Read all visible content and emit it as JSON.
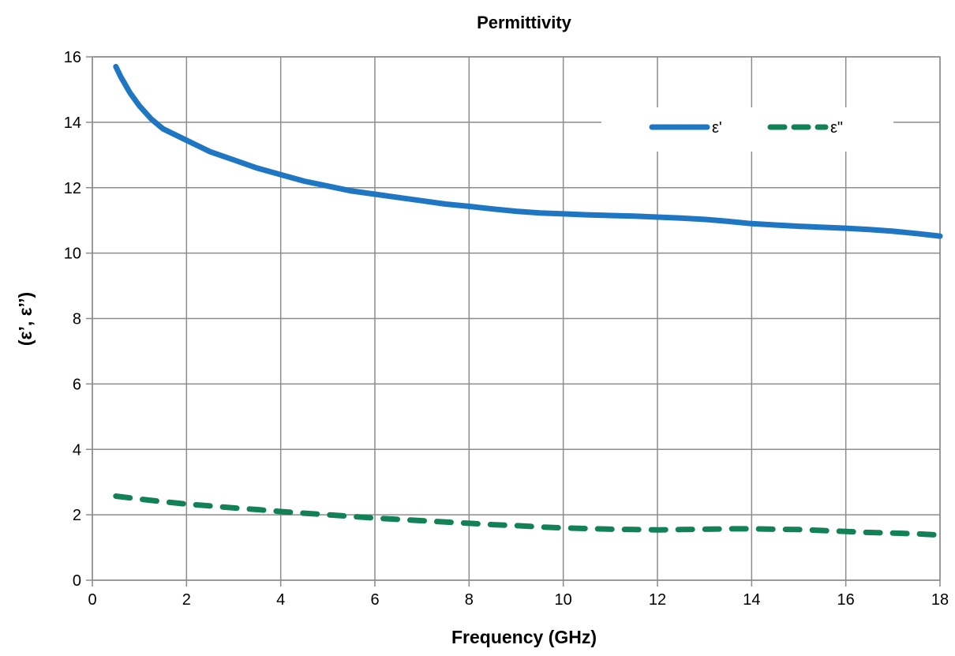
{
  "chart_data": {
    "type": "line",
    "title": "Permittivity",
    "xlabel": "Frequency (GHz)",
    "ylabel": "(ε’, ε’’)",
    "xlim": [
      0,
      18
    ],
    "ylim": [
      0,
      16
    ],
    "x_ticks": [
      "0",
      "2",
      "4",
      "6",
      "8",
      "10",
      "12",
      "14",
      "16",
      "18"
    ],
    "y_ticks": [
      "0",
      "2",
      "4",
      "6",
      "8",
      "10",
      "12",
      "14",
      "16"
    ],
    "grid": true,
    "legend_position": "top-right",
    "series": [
      {
        "name": "ε'",
        "color": "#1f77c4",
        "dash": "solid",
        "x": [
          0.5,
          0.6,
          0.8,
          1.0,
          1.25,
          1.5,
          2.0,
          2.5,
          3.0,
          3.5,
          4.0,
          4.5,
          5.0,
          5.5,
          6.0,
          6.5,
          7.0,
          7.5,
          8.0,
          8.5,
          9.0,
          9.5,
          10.0,
          10.5,
          11.0,
          11.5,
          12.0,
          12.5,
          13.0,
          13.5,
          14.0,
          14.5,
          15.0,
          15.5,
          16.0,
          16.5,
          17.0,
          17.5,
          18.0
        ],
        "y": [
          15.7,
          15.4,
          14.9,
          14.5,
          14.1,
          13.8,
          13.45,
          13.1,
          12.85,
          12.6,
          12.4,
          12.2,
          12.05,
          11.9,
          11.8,
          11.7,
          11.6,
          11.5,
          11.43,
          11.35,
          11.28,
          11.23,
          11.2,
          11.17,
          11.15,
          11.13,
          11.1,
          11.07,
          11.03,
          10.97,
          10.9,
          10.86,
          10.82,
          10.79,
          10.76,
          10.72,
          10.67,
          10.6,
          10.52
        ]
      },
      {
        "name": "ε\"",
        "color": "#138156",
        "dash": "dashed",
        "x": [
          0.5,
          1.0,
          1.5,
          2.0,
          2.5,
          3.0,
          3.5,
          4.0,
          4.5,
          5.0,
          5.5,
          6.0,
          6.5,
          7.0,
          7.5,
          8.0,
          8.5,
          9.0,
          9.5,
          10.0,
          10.5,
          11.0,
          11.5,
          12.0,
          12.5,
          13.0,
          13.5,
          14.0,
          14.5,
          15.0,
          15.5,
          16.0,
          16.5,
          17.0,
          17.5,
          18.0
        ],
        "y": [
          2.57,
          2.48,
          2.4,
          2.33,
          2.27,
          2.21,
          2.16,
          2.1,
          2.05,
          2.0,
          1.95,
          1.9,
          1.86,
          1.82,
          1.78,
          1.74,
          1.7,
          1.67,
          1.63,
          1.6,
          1.58,
          1.56,
          1.55,
          1.54,
          1.55,
          1.56,
          1.57,
          1.57,
          1.56,
          1.55,
          1.52,
          1.49,
          1.46,
          1.44,
          1.42,
          1.38
        ]
      }
    ]
  }
}
